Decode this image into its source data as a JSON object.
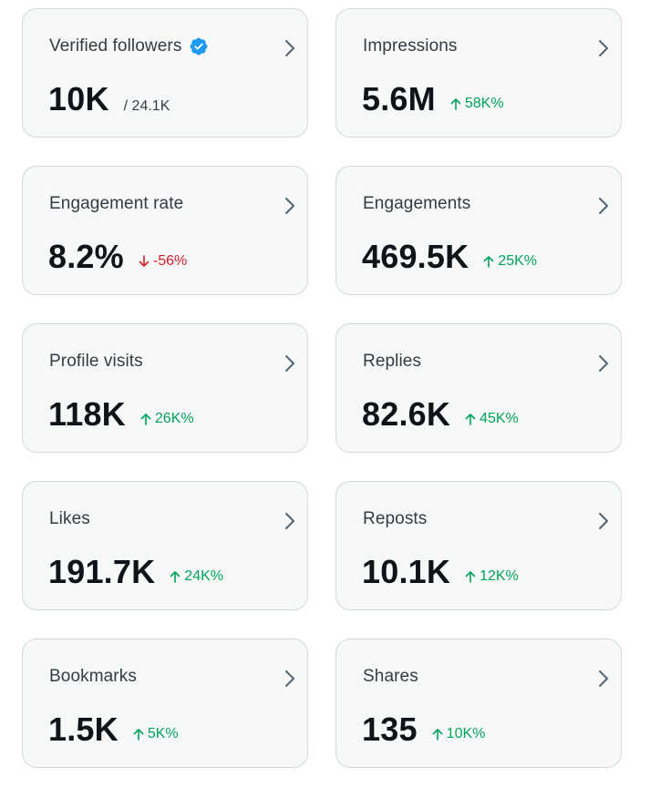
{
  "cards": [
    {
      "id": "verified-followers",
      "title": "Verified followers",
      "verified": true,
      "value": "10K",
      "sub": "/ 24.1K",
      "delta": "",
      "direction": ""
    },
    {
      "id": "impressions",
      "title": "Impressions",
      "verified": false,
      "value": "5.6M",
      "sub": "",
      "delta": "58K%",
      "direction": "up"
    },
    {
      "id": "engagement-rate",
      "title": "Engagement rate",
      "verified": false,
      "value": "8.2%",
      "sub": "",
      "delta": "-56%",
      "direction": "down"
    },
    {
      "id": "engagements",
      "title": "Engagements",
      "verified": false,
      "value": "469.5K",
      "sub": "",
      "delta": "25K%",
      "direction": "up"
    },
    {
      "id": "profile-visits",
      "title": "Profile visits",
      "verified": false,
      "value": "118K",
      "sub": "",
      "delta": "26K%",
      "direction": "up"
    },
    {
      "id": "replies",
      "title": "Replies",
      "verified": false,
      "value": "82.6K",
      "sub": "",
      "delta": "45K%",
      "direction": "up"
    },
    {
      "id": "likes",
      "title": "Likes",
      "verified": false,
      "value": "191.7K",
      "sub": "",
      "delta": "24K%",
      "direction": "up"
    },
    {
      "id": "reposts",
      "title": "Reposts",
      "verified": false,
      "value": "10.1K",
      "sub": "",
      "delta": "12K%",
      "direction": "up"
    },
    {
      "id": "bookmarks",
      "title": "Bookmarks",
      "verified": false,
      "value": "1.5K",
      "sub": "",
      "delta": "5K%",
      "direction": "up"
    },
    {
      "id": "shares",
      "title": "Shares",
      "verified": false,
      "value": "135",
      "sub": "",
      "delta": "10K%",
      "direction": "up"
    }
  ],
  "colors": {
    "card_bg": "#f7f9f9",
    "card_border": "#cfd9de",
    "positive": "#00a35a",
    "negative": "#d42029",
    "verified_badge": "#1d9bf0",
    "chevron": "#536471"
  }
}
